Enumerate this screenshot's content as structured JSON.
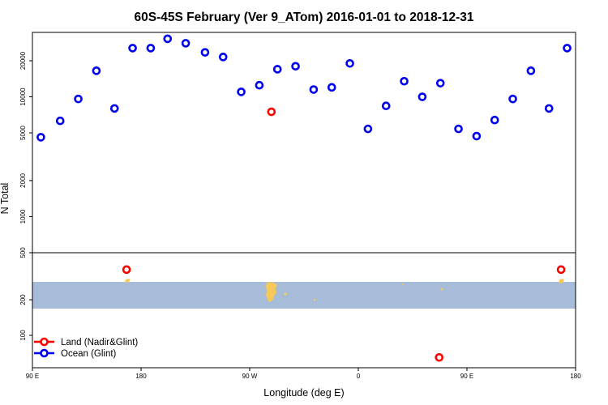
{
  "chart_data": {
    "type": "scatter",
    "title": "60S-45S February (Ver 9_ATom)   2016-01-01 to 2018-12-31",
    "xlabel": "Longitude (deg E)",
    "ylabel": "N Total",
    "x_ticks": [
      {
        "value": 90,
        "label": "90 E"
      },
      {
        "value": 180,
        "label": "180"
      },
      {
        "value": 270,
        "label": "90 W"
      },
      {
        "value": 360,
        "label": "0"
      },
      {
        "value": 450,
        "label": "90 E"
      },
      {
        "value": 540,
        "label": "180"
      }
    ],
    "xlim": [
      90,
      540
    ],
    "scale": "log",
    "y_ticks": [
      {
        "value": 100,
        "label": "100"
      },
      {
        "value": 200,
        "label": "200"
      },
      {
        "value": 500,
        "label": "500"
      },
      {
        "value": 1000,
        "label": "1000"
      },
      {
        "value": 2000,
        "label": "2000"
      },
      {
        "value": 5000,
        "label": "5000"
      },
      {
        "value": 10000,
        "label": "10000"
      },
      {
        "value": 20000,
        "label": "20000"
      }
    ],
    "ylim": [
      55,
      42000
    ],
    "series": [
      {
        "name": "Land (Nadir&Glint)",
        "color": "#ff0000",
        "points": [
          {
            "x": 168,
            "y": 360
          },
          {
            "x": 288,
            "y": 7500
          },
          {
            "x": 427,
            "y": 65
          },
          {
            "x": 528,
            "y": 360
          }
        ]
      },
      {
        "name": "Ocean (Glint)",
        "color": "#0000ee",
        "points": [
          {
            "x": 97,
            "y": 4600
          },
          {
            "x": 113,
            "y": 6300
          },
          {
            "x": 128,
            "y": 9600
          },
          {
            "x": 143,
            "y": 16500
          },
          {
            "x": 158,
            "y": 8000
          },
          {
            "x": 173,
            "y": 25500
          },
          {
            "x": 188,
            "y": 25500
          },
          {
            "x": 202,
            "y": 30500
          },
          {
            "x": 217,
            "y": 28000
          },
          {
            "x": 233,
            "y": 23500
          },
          {
            "x": 248,
            "y": 21500
          },
          {
            "x": 263,
            "y": 11000
          },
          {
            "x": 278,
            "y": 12500
          },
          {
            "x": 293,
            "y": 17000
          },
          {
            "x": 308,
            "y": 18000
          },
          {
            "x": 323,
            "y": 11500
          },
          {
            "x": 338,
            "y": 12000
          },
          {
            "x": 353,
            "y": 19000
          },
          {
            "x": 368,
            "y": 5400
          },
          {
            "x": 383,
            "y": 8400
          },
          {
            "x": 398,
            "y": 13500
          },
          {
            "x": 413,
            "y": 10000
          },
          {
            "x": 428,
            "y": 13000
          },
          {
            "x": 443,
            "y": 5400
          },
          {
            "x": 458,
            "y": 4700
          },
          {
            "x": 473,
            "y": 6400
          },
          {
            "x": 488,
            "y": 9600
          },
          {
            "x": 503,
            "y": 16500
          },
          {
            "x": 518,
            "y": 8000
          },
          {
            "x": 533,
            "y": 25500
          }
        ]
      }
    ],
    "legend_position": "bottom-left",
    "grid": false,
    "band_color": "#a7bcd8",
    "land_color": "#f5c85a"
  }
}
